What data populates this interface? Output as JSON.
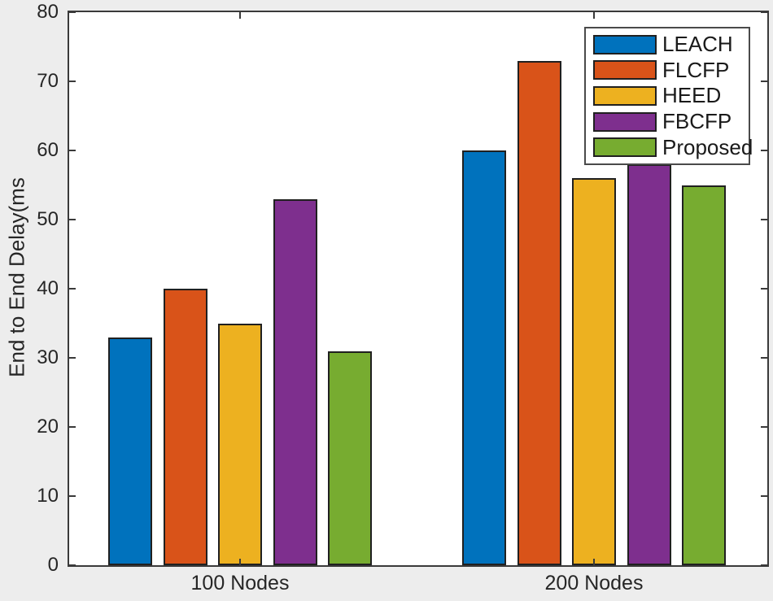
{
  "chart_data": {
    "type": "bar",
    "title": "",
    "xlabel": "",
    "ylabel": "End to End Delay(ms",
    "categories": [
      "100 Nodes",
      "200 Nodes"
    ],
    "series": [
      {
        "name": "LEACH",
        "color": "#0072BD",
        "values": [
          33,
          60
        ]
      },
      {
        "name": "FLCFP",
        "color": "#D95319",
        "values": [
          40,
          73
        ]
      },
      {
        "name": "HEED",
        "color": "#EDB120",
        "values": [
          35,
          56
        ]
      },
      {
        "name": "FBCFP",
        "color": "#7E2F8E",
        "values": [
          53,
          58
        ]
      },
      {
        "name": "Proposed",
        "color": "#77AC30",
        "values": [
          31,
          55
        ]
      }
    ],
    "ylim": [
      0,
      80
    ],
    "yticks": [
      0,
      10,
      20,
      30,
      40,
      50,
      60,
      70,
      80
    ],
    "grid": false,
    "legend_position": "top-right"
  },
  "colors": {
    "figure_background": "#ededed",
    "plot_background": "#ffffff",
    "axis": "#3a3a3a",
    "bar_edge": "#202020",
    "text": "#262626"
  }
}
